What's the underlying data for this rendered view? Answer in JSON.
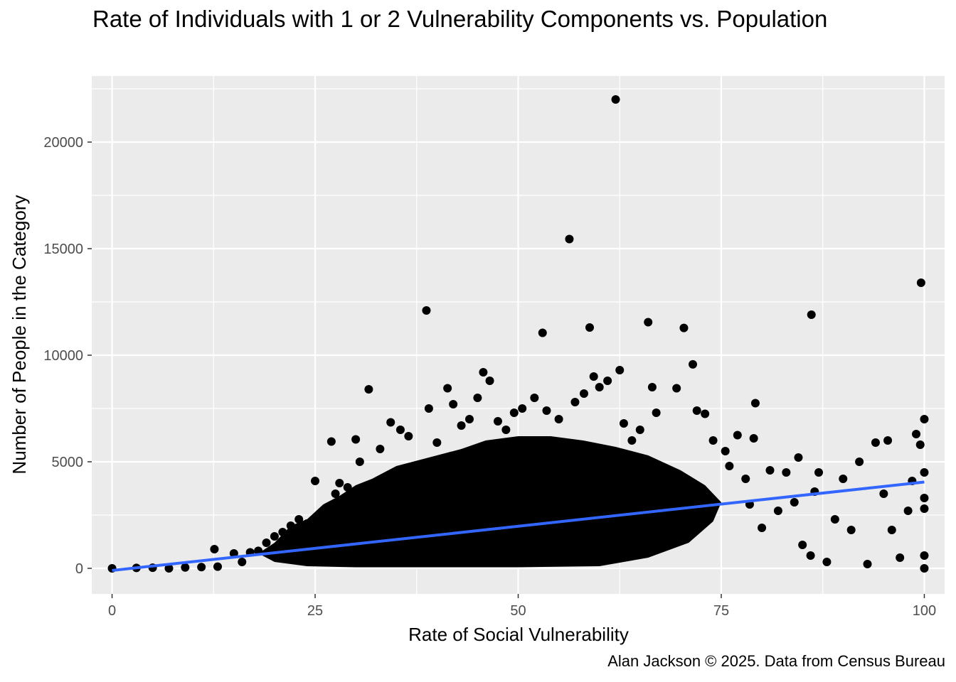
{
  "chart_data": {
    "type": "scatter",
    "title": "Rate of Individuals with 1 or 2 Vulnerability Components vs. Population",
    "caption": "Alan Jackson © 2025. Data from Census Bureau",
    "xlabel": "Rate of Social Vulnerability",
    "ylabel": "Number of People in the Category",
    "xlim": [
      -2.5,
      102.5
    ],
    "ylim": [
      -1200,
      23100
    ],
    "x_ticks": [
      0,
      25,
      50,
      75,
      100
    ],
    "y_ticks": [
      0,
      5000,
      10000,
      15000,
      20000
    ],
    "x_tick_labels": [
      "0",
      "25",
      "50",
      "75",
      "100"
    ],
    "y_tick_labels": [
      "0",
      "5000",
      "10000",
      "15000",
      "20000"
    ],
    "grid": true,
    "point_color": "#000000",
    "panel_background": "#ebebeb",
    "trend_line": {
      "color": "#3366ff",
      "x": [
        0,
        100
      ],
      "y": [
        -100,
        4050
      ]
    },
    "points": [
      [
        0,
        0
      ],
      [
        3,
        20
      ],
      [
        5,
        30
      ],
      [
        7,
        0
      ],
      [
        9,
        40
      ],
      [
        11,
        60
      ],
      [
        12.6,
        900
      ],
      [
        13,
        80
      ],
      [
        15,
        700
      ],
      [
        16,
        300
      ],
      [
        17,
        750
      ],
      [
        18,
        820
      ],
      [
        19,
        1200
      ],
      [
        20,
        1500
      ],
      [
        21,
        1700
      ],
      [
        22,
        2000
      ],
      [
        23,
        2300
      ],
      [
        24,
        2100
      ],
      [
        25,
        4100
      ],
      [
        26,
        2500
      ],
      [
        27,
        5950
      ],
      [
        27.5,
        3500
      ],
      [
        28,
        4000
      ],
      [
        29,
        3800
      ],
      [
        30,
        6050
      ],
      [
        30.5,
        5000
      ],
      [
        31.6,
        8400
      ],
      [
        33,
        5600
      ],
      [
        34.3,
        6850
      ],
      [
        35.5,
        6500
      ],
      [
        36.5,
        6200
      ],
      [
        38.7,
        12100
      ],
      [
        39,
        7500
      ],
      [
        40,
        5900
      ],
      [
        41.3,
        8450
      ],
      [
        42,
        7700
      ],
      [
        43,
        6700
      ],
      [
        44,
        7000
      ],
      [
        45,
        8000
      ],
      [
        45.7,
        9200
      ],
      [
        46.5,
        8800
      ],
      [
        47.5,
        6900
      ],
      [
        48.5,
        6500
      ],
      [
        49.5,
        7300
      ],
      [
        50.5,
        7500
      ],
      [
        52,
        8000
      ],
      [
        53,
        11050
      ],
      [
        53.5,
        7400
      ],
      [
        55,
        7000
      ],
      [
        56.3,
        15450
      ],
      [
        57,
        7800
      ],
      [
        58.1,
        8200
      ],
      [
        58.8,
        11300
      ],
      [
        59.3,
        9000
      ],
      [
        60,
        8500
      ],
      [
        61,
        8800
      ],
      [
        62,
        22000
      ],
      [
        62.5,
        9300
      ],
      [
        63,
        6800
      ],
      [
        64,
        6000
      ],
      [
        65,
        6500
      ],
      [
        66,
        11550
      ],
      [
        66.5,
        8500
      ],
      [
        67,
        7300
      ],
      [
        69.5,
        8450
      ],
      [
        70.4,
        11280
      ],
      [
        71.5,
        9570
      ],
      [
        72,
        7400
      ],
      [
        73,
        7250
      ],
      [
        74,
        6000
      ],
      [
        75.5,
        5500
      ],
      [
        76,
        4800
      ],
      [
        77,
        6250
      ],
      [
        78,
        4200
      ],
      [
        78.5,
        3000
      ],
      [
        79.2,
        7750
      ],
      [
        79,
        6100
      ],
      [
        80,
        1900
      ],
      [
        81,
        4600
      ],
      [
        82,
        2700
      ],
      [
        83,
        4500
      ],
      [
        84,
        3100
      ],
      [
        84.5,
        5200
      ],
      [
        85,
        1100
      ],
      [
        86,
        600
      ],
      [
        86.1,
        11900
      ],
      [
        86.5,
        3600
      ],
      [
        87,
        4500
      ],
      [
        88,
        300
      ],
      [
        89,
        2300
      ],
      [
        90,
        4200
      ],
      [
        91,
        1800
      ],
      [
        92,
        5000
      ],
      [
        93,
        200
      ],
      [
        94,
        5900
      ],
      [
        95,
        3500
      ],
      [
        95.5,
        6000
      ],
      [
        96,
        1800
      ],
      [
        97,
        500
      ],
      [
        98,
        2700
      ],
      [
        98.5,
        4100
      ],
      [
        99,
        6300
      ],
      [
        99.5,
        5800
      ],
      [
        99.6,
        13400
      ],
      [
        100,
        7000
      ],
      [
        100,
        4500
      ],
      [
        100,
        3300
      ],
      [
        100,
        2800
      ],
      [
        100,
        600
      ],
      [
        100,
        0
      ]
    ]
  }
}
